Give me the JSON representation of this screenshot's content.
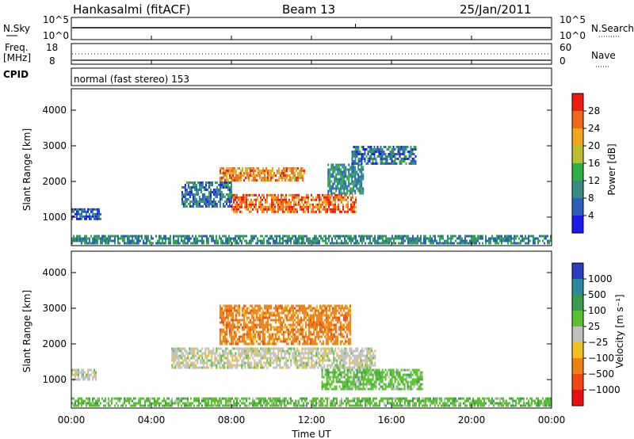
{
  "header": {
    "station": "Hankasalmi (fitACF)",
    "beam": "Beam 13",
    "date": "25/Jan/2011"
  },
  "status_panel": {
    "left_labels": [
      "N.Sky",
      "10^5",
      "10^0",
      "Freq.",
      "[MHz]",
      "18",
      "8",
      "CPID"
    ],
    "right_labels": [
      "10^5",
      "10^0",
      "N.Search",
      "60",
      "0",
      "Nave"
    ],
    "cpid_text": "normal (fast stereo) 153"
  },
  "time_axis": {
    "ticks": [
      "00:00",
      "04:00",
      "08:00",
      "12:00",
      "16:00",
      "20:00",
      "00:00"
    ],
    "label": "Time UT",
    "range_hours": [
      0,
      24
    ]
  },
  "power_panel": {
    "ylabel": "Slant Range [km]",
    "yticks": [
      "1000",
      "2000",
      "3000",
      "4000"
    ],
    "colorbar_label": "Power [dB]",
    "colorbar_ticks": [
      "4",
      "8",
      "12",
      "16",
      "20",
      "24",
      "28"
    ],
    "colorbar_colors": [
      "#1a1aee",
      "#2a60b8",
      "#3a8a80",
      "#2fae44",
      "#bcbe2c",
      "#f0a81a",
      "#f06818",
      "#ee1c10"
    ]
  },
  "velocity_panel": {
    "ylabel": "Slant Range [km]",
    "yticks": [
      "1000",
      "2000",
      "3000",
      "4000"
    ],
    "colorbar_label": "Velocity [m s⁻¹]",
    "colorbar_ticks": [
      "1000",
      "500",
      "100",
      "25",
      "−25",
      "−100",
      "−500",
      "−1000"
    ],
    "colorbar_colors": [
      "#2a3ec0",
      "#2a8aa0",
      "#3c9a50",
      "#5ac030",
      "#c0c0c0",
      "#f0c020",
      "#f08010",
      "#f04810",
      "#e81010"
    ]
  },
  "chart_data": {
    "type": "heatmap",
    "x_unit": "hours UT",
    "xlim": [
      0,
      24
    ],
    "ylim_km": [
      200,
      4600
    ],
    "power_regions": [
      {
        "t0": 7.4,
        "t1": 11.6,
        "r0": 2050,
        "r1": 2400,
        "level_db": 26
      },
      {
        "t0": 8.0,
        "t1": 14.2,
        "r0": 1150,
        "r1": 1650,
        "level_db": 28
      },
      {
        "t0": 5.5,
        "t1": 8.0,
        "r0": 1300,
        "r1": 2000,
        "level_db": 10
      },
      {
        "t0": 0.0,
        "t1": 1.5,
        "r0": 950,
        "r1": 1250,
        "level_db": 8
      },
      {
        "t0": 12.8,
        "t1": 14.6,
        "r0": 1650,
        "r1": 2500,
        "level_db": 12
      },
      {
        "t0": 14.0,
        "t1": 17.2,
        "r0": 2500,
        "r1": 3000,
        "level_db": 10
      },
      {
        "t0": 0.0,
        "t1": 24.0,
        "r0": 250,
        "r1": 500,
        "level_db": 12
      }
    ],
    "velocity_regions": [
      {
        "t0": 7.4,
        "t1": 13.9,
        "r0": 2000,
        "r1": 3100,
        "velocity": -200
      },
      {
        "t0": 5.0,
        "t1": 15.2,
        "r0": 1300,
        "r1": 1900,
        "velocity": 0
      },
      {
        "t0": 12.5,
        "t1": 17.5,
        "r0": 700,
        "r1": 1300,
        "velocity": 60
      },
      {
        "t0": 0.0,
        "t1": 1.2,
        "r0": 1000,
        "r1": 1300,
        "velocity": 0
      },
      {
        "t0": 0.0,
        "t1": 24.0,
        "r0": 250,
        "r1": 500,
        "velocity": 60
      }
    ]
  }
}
